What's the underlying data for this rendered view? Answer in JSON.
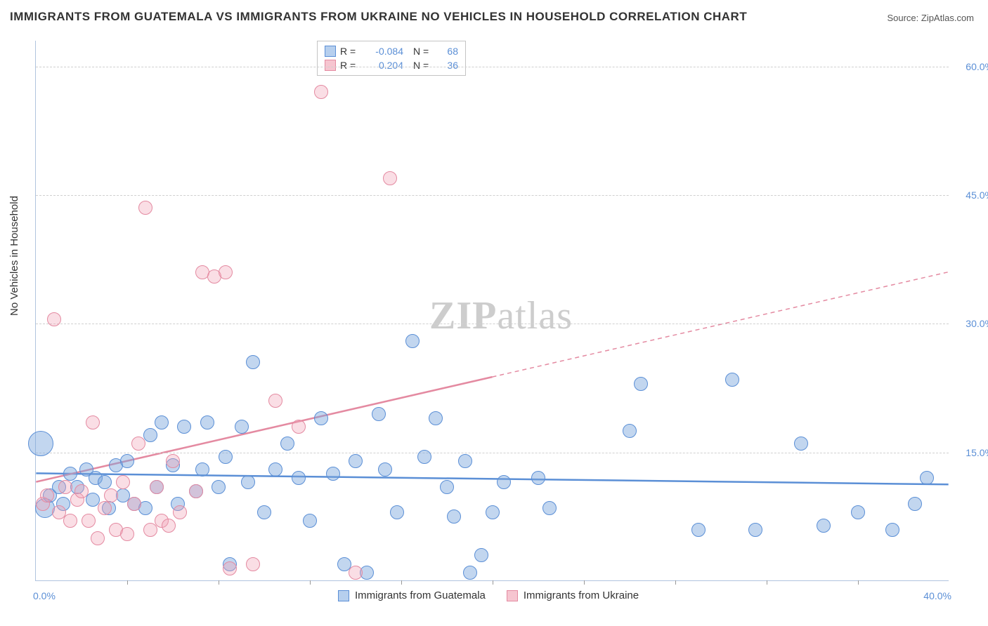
{
  "title": "IMMIGRANTS FROM GUATEMALA VS IMMIGRANTS FROM UKRAINE NO VEHICLES IN HOUSEHOLD CORRELATION CHART",
  "source": "Source: ZipAtlas.com",
  "watermark_a": "ZIP",
  "watermark_b": "atlas",
  "ylabel": "No Vehicles in Household",
  "chart": {
    "type": "scatter",
    "xlim": [
      0,
      40
    ],
    "ylim": [
      0,
      63
    ],
    "x_tick_step": 4,
    "y_ticks": [
      15,
      30,
      45,
      60
    ],
    "x_axis_min_label": "0.0%",
    "x_axis_max_label": "40.0%",
    "y_tick_labels": [
      "15.0%",
      "30.0%",
      "45.0%",
      "60.0%"
    ],
    "colors": {
      "blue_fill": "#b6cfee",
      "blue_stroke": "#5b8fd6",
      "pink_fill": "#f6c5d0",
      "pink_stroke": "#e48aa1",
      "grid": "#d0d0d0",
      "axis": "#b0c4de",
      "text_accent": "#5b8fd6"
    },
    "marker_radius": 8,
    "series": [
      {
        "name": "Immigrants from Guatemala",
        "color_key": "blue",
        "R": "-0.084",
        "N": "68",
        "trend": {
          "y_at_x0": 12.5,
          "y_at_x40": 11.2,
          "dashed_from_x": null
        },
        "points": [
          [
            0.2,
            16,
            18
          ],
          [
            0.4,
            8.5,
            14
          ],
          [
            0.6,
            10,
            10
          ],
          [
            1.0,
            11,
            10
          ],
          [
            1.2,
            9,
            10
          ],
          [
            1.5,
            12.5,
            10
          ],
          [
            1.8,
            11,
            10
          ],
          [
            2.2,
            13,
            10
          ],
          [
            2.5,
            9.5,
            10
          ],
          [
            2.6,
            12,
            10
          ],
          [
            3.0,
            11.5,
            10
          ],
          [
            3.2,
            8.5,
            10
          ],
          [
            3.5,
            13.5,
            10
          ],
          [
            3.8,
            10,
            10
          ],
          [
            4.0,
            14,
            10
          ],
          [
            4.3,
            9,
            10
          ],
          [
            4.8,
            8.5,
            10
          ],
          [
            5.0,
            17,
            10
          ],
          [
            5.3,
            11,
            10
          ],
          [
            5.5,
            18.5,
            10
          ],
          [
            6.0,
            13.5,
            10
          ],
          [
            6.2,
            9,
            10
          ],
          [
            6.5,
            18,
            10
          ],
          [
            7.0,
            10.5,
            10
          ],
          [
            7.3,
            13,
            10
          ],
          [
            7.5,
            18.5,
            10
          ],
          [
            8.0,
            11,
            10
          ],
          [
            8.3,
            14.5,
            10
          ],
          [
            8.5,
            2,
            10
          ],
          [
            9.0,
            18,
            10
          ],
          [
            9.3,
            11.5,
            10
          ],
          [
            9.5,
            25.5,
            10
          ],
          [
            10.0,
            8,
            10
          ],
          [
            10.5,
            13,
            10
          ],
          [
            11.0,
            16,
            10
          ],
          [
            11.5,
            12,
            10
          ],
          [
            12.0,
            7,
            10
          ],
          [
            12.5,
            19,
            10
          ],
          [
            13.0,
            12.5,
            10
          ],
          [
            13.5,
            2,
            10
          ],
          [
            14.0,
            14,
            10
          ],
          [
            14.5,
            1,
            10
          ],
          [
            15.0,
            19.5,
            10
          ],
          [
            15.3,
            13,
            10
          ],
          [
            15.8,
            8,
            10
          ],
          [
            16.5,
            28,
            10
          ],
          [
            17.0,
            14.5,
            10
          ],
          [
            17.5,
            19,
            10
          ],
          [
            18.0,
            11,
            10
          ],
          [
            18.3,
            7.5,
            10
          ],
          [
            18.8,
            14,
            10
          ],
          [
            19.0,
            1,
            10
          ],
          [
            19.5,
            3,
            10
          ],
          [
            20.0,
            8,
            10
          ],
          [
            20.5,
            11.5,
            10
          ],
          [
            22.0,
            12,
            10
          ],
          [
            22.5,
            8.5,
            10
          ],
          [
            26.0,
            17.5,
            10
          ],
          [
            26.5,
            23,
            10
          ],
          [
            29.0,
            6,
            10
          ],
          [
            30.5,
            23.5,
            10
          ],
          [
            31.5,
            6,
            10
          ],
          [
            33.5,
            16,
            10
          ],
          [
            34.5,
            6.5,
            10
          ],
          [
            36.0,
            8,
            10
          ],
          [
            37.5,
            6,
            10
          ],
          [
            38.5,
            9,
            10
          ],
          [
            39.0,
            12,
            10
          ]
        ]
      },
      {
        "name": "Immigrants from Ukraine",
        "color_key": "pink",
        "R": "0.204",
        "N": "36",
        "trend": {
          "y_at_x0": 11.5,
          "y_at_x40": 36.0,
          "dashed_from_x": 20
        },
        "points": [
          [
            0.3,
            9,
            10
          ],
          [
            0.5,
            10,
            10
          ],
          [
            0.8,
            30.5,
            10
          ],
          [
            1.0,
            8,
            10
          ],
          [
            1.3,
            11,
            10
          ],
          [
            1.5,
            7,
            10
          ],
          [
            1.8,
            9.5,
            10
          ],
          [
            2.0,
            10.5,
            10
          ],
          [
            2.3,
            7,
            10
          ],
          [
            2.5,
            18.5,
            10
          ],
          [
            2.7,
            5,
            10
          ],
          [
            3.0,
            8.5,
            10
          ],
          [
            3.3,
            10,
            10
          ],
          [
            3.5,
            6,
            10
          ],
          [
            3.8,
            11.5,
            10
          ],
          [
            4.0,
            5.5,
            10
          ],
          [
            4.3,
            9,
            10
          ],
          [
            4.5,
            16,
            10
          ],
          [
            4.8,
            43.5,
            10
          ],
          [
            5.0,
            6,
            10
          ],
          [
            5.3,
            11,
            10
          ],
          [
            5.5,
            7,
            10
          ],
          [
            5.8,
            6.5,
            10
          ],
          [
            6.0,
            14,
            10
          ],
          [
            6.3,
            8,
            10
          ],
          [
            7.0,
            10.5,
            10
          ],
          [
            7.3,
            36,
            10
          ],
          [
            7.8,
            35.5,
            10
          ],
          [
            8.3,
            36,
            10
          ],
          [
            8.5,
            1.5,
            10
          ],
          [
            9.5,
            2,
            10
          ],
          [
            10.5,
            21,
            10
          ],
          [
            11.5,
            18,
            10
          ],
          [
            12.5,
            57,
            10
          ],
          [
            14.0,
            1,
            10
          ],
          [
            15.5,
            47,
            10
          ]
        ]
      }
    ],
    "legend_bottom": [
      "Immigrants from Guatemala",
      "Immigrants from Ukraine"
    ]
  }
}
